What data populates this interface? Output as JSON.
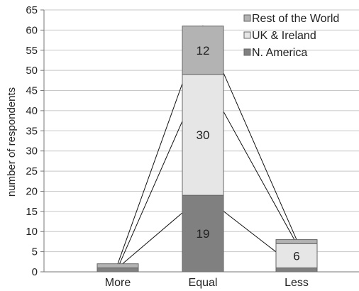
{
  "chart_data": {
    "type": "bar",
    "stacked": true,
    "categories": [
      "More",
      "Equal",
      "Less"
    ],
    "series": [
      {
        "name": "N. America",
        "values": [
          1,
          19,
          1
        ],
        "color": "#808080"
      },
      {
        "name": "UK & Ireland",
        "values": [
          0,
          30,
          6
        ],
        "color": "#e6e6e6"
      },
      {
        "name": "Rest of the World",
        "values": [
          1,
          12,
          1
        ],
        "color": "#b3b3b3"
      }
    ],
    "data_labels": [
      {
        "series": "N. America",
        "category": "Equal",
        "text": "19"
      },
      {
        "series": "UK & Ireland",
        "category": "Equal",
        "text": "30"
      },
      {
        "series": "UK & Ireland",
        "category": "Less",
        "text": "6"
      },
      {
        "series": "Rest of the World",
        "category": "Equal",
        "text": "12"
      }
    ],
    "ylabel": "number of respondents",
    "xlabel": "",
    "ylim": [
      0,
      65
    ],
    "yticks": [
      0,
      5,
      10,
      15,
      20,
      25,
      30,
      35,
      40,
      45,
      50,
      55,
      60,
      65
    ],
    "grid": true,
    "legend_position": "top-right",
    "legend_order": [
      "Rest of the World",
      "UK & Ireland",
      "N. America"
    ],
    "series_lines": "connect cumulative stack tops between adjacent bars"
  }
}
